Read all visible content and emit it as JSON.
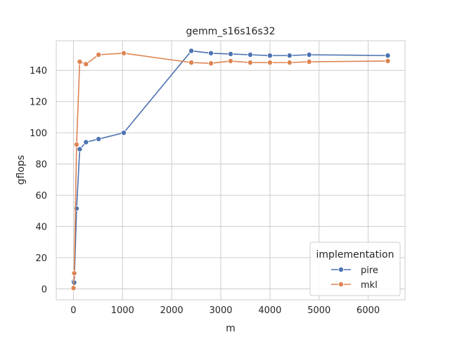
{
  "chart_data": {
    "type": "line",
    "title": "gemm_s16s16s32",
    "xlabel": "m",
    "ylabel": "gflops",
    "xlim": [
      -350,
      6750
    ],
    "ylim": [
      -7,
      159
    ],
    "xticks": [
      0,
      1000,
      2000,
      3000,
      4000,
      5000,
      6000
    ],
    "yticks": [
      0,
      20,
      40,
      60,
      80,
      100,
      120,
      140
    ],
    "grid": true,
    "legend": {
      "title": "implementation",
      "placement": "lower-right"
    },
    "series": [
      {
        "name": "pire",
        "color": "#4c72b0",
        "x": [
          1,
          16,
          64,
          128,
          256,
          512,
          1024,
          2400,
          2800,
          3200,
          3600,
          4000,
          4400,
          4800,
          6400
        ],
        "y": [
          4.5,
          4.0,
          51.5,
          89.5,
          94.0,
          96.0,
          100.0,
          152.5,
          151.0,
          150.5,
          150.0,
          149.5,
          149.5,
          150.0,
          149.5
        ]
      },
      {
        "name": "mkl",
        "color": "#dd8452",
        "x": [
          1,
          16,
          64,
          128,
          256,
          512,
          1024,
          2400,
          2800,
          3200,
          3600,
          4000,
          4400,
          4800,
          6400
        ],
        "y": [
          0.5,
          10.0,
          92.5,
          145.5,
          144.0,
          150.0,
          151.0,
          145.0,
          144.5,
          146.0,
          145.0,
          145.0,
          145.0,
          145.5,
          146.0
        ]
      }
    ]
  }
}
